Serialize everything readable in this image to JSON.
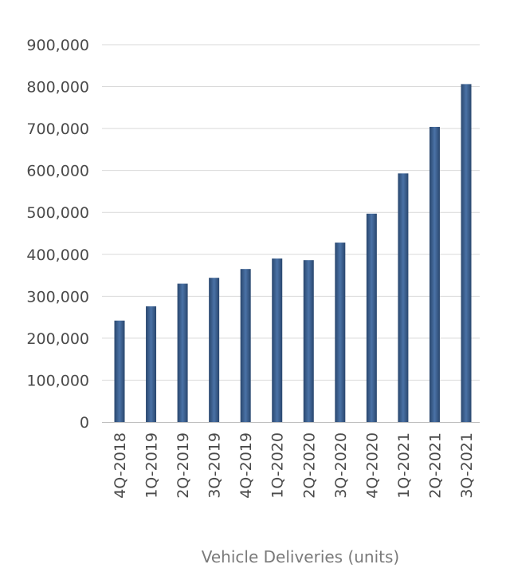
{
  "chart_data": {
    "type": "bar",
    "categories": [
      "4Q-2018",
      "1Q-2019",
      "2Q-2019",
      "3Q-2019",
      "4Q-2019",
      "1Q-2020",
      "2Q-2020",
      "3Q-2020",
      "4Q-2020",
      "1Q-2021",
      "2Q-2021",
      "3Q-2021"
    ],
    "values": [
      242000,
      276000,
      330000,
      344000,
      365000,
      390000,
      386000,
      428000,
      497000,
      593000,
      704000,
      806000
    ],
    "xlabel": "Vehicle Deliveries (units)",
    "ylabel": "",
    "ylim": [
      0,
      900000
    ],
    "yticks": [
      "0",
      "100,000",
      "200,000",
      "300,000",
      "400,000",
      "500,000",
      "600,000",
      "700,000",
      "800,000",
      "900,000"
    ],
    "grid": true,
    "bar_color": "#3d6191",
    "bar_color_edge": "#2a476e"
  }
}
